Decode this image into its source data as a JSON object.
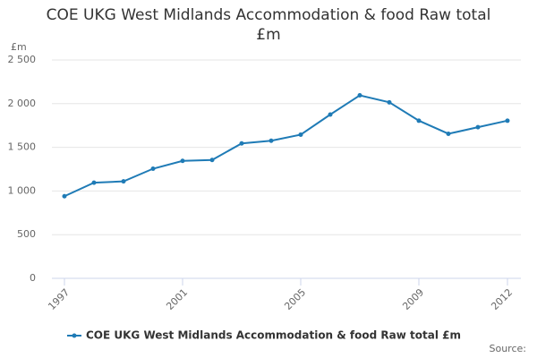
{
  "chart_data": {
    "type": "line",
    "title": "COE UKG West Midlands Accommodation & food Raw total £m",
    "y_label": "£m",
    "x": [
      1997,
      1998,
      1999,
      2000,
      2001,
      2002,
      2003,
      2004,
      2005,
      2006,
      2007,
      2008,
      2009,
      2010,
      2011,
      2012
    ],
    "series": [
      {
        "name": "COE UKG West Midlands Accommodation & food Raw total £m",
        "color": "#1f7bb6",
        "values": [
          940,
          1095,
          1110,
          1255,
          1345,
          1355,
          1545,
          1575,
          1645,
          1875,
          2095,
          2015,
          1805,
          1655,
          1730,
          1805
        ]
      }
    ],
    "xlim": [
      1997,
      2012
    ],
    "xticks": [
      1997,
      2001,
      2005,
      2009,
      2012
    ],
    "ylim": [
      0,
      2500
    ],
    "yticks": [
      0,
      500,
      {
        "value": 1000,
        "label": "1 000"
      },
      {
        "value": 1500,
        "label": "1 500"
      },
      {
        "value": 2000,
        "label": "2 000"
      },
      {
        "value": 2500,
        "label": "2 500"
      }
    ],
    "grid": true,
    "legend": "bottom",
    "source": "Source:"
  }
}
